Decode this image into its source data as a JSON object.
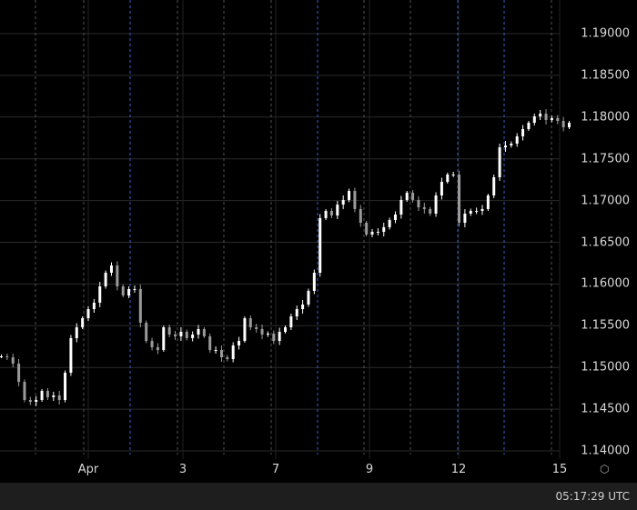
{
  "chart_data": {
    "type": "candlestick",
    "title": "",
    "ylim": [
      1.14,
      1.19
    ],
    "y_ticks": [
      "1.19000",
      "1.18500",
      "1.18000",
      "1.17500",
      "1.17000",
      "1.16500",
      "1.16000",
      "1.15500",
      "1.15000",
      "1.14500",
      "1.14000"
    ],
    "x_ticks": [
      "Apr",
      "3",
      "7",
      "9",
      "12",
      "15"
    ],
    "grid": true,
    "up_color": "#ffffff",
    "down_color": "#9a9a9a",
    "session_line_color": "#3a5fcf",
    "closes": [
      1.15133,
      1.15122,
      1.15046,
      1.14828,
      1.1461,
      1.14588,
      1.1461,
      1.14719,
      1.14643,
      1.14665,
      1.1461,
      1.14937,
      1.15351,
      1.15481,
      1.1559,
      1.15699,
      1.15776,
      1.15972,
      1.16135,
      1.16222,
      1.15972,
      1.15863,
      1.15939,
      1.15939,
      1.15536,
      1.15318,
      1.15242,
      1.15209,
      1.15481,
      1.15394,
      1.15373,
      1.15427,
      1.15351,
      1.15394,
      1.1546,
      1.15373,
      1.15209,
      1.15209,
      1.15122,
      1.151,
      1.15264,
      1.15318,
      1.1559,
      1.15481,
      1.1546,
      1.15394,
      1.15405,
      1.15318,
      1.15427,
      1.15481,
      1.15612,
      1.15699,
      1.15754,
      1.15917,
      1.16135,
      1.16789,
      1.16876,
      1.16821,
      1.16952,
      1.17007,
      1.17115,
      1.16898,
      1.16734,
      1.16593,
      1.16625,
      1.16625,
      1.1668,
      1.16767,
      1.16832,
      1.17007,
      1.17094,
      1.17007,
      1.16919,
      1.16898,
      1.16843,
      1.17061,
      1.17224,
      1.17312,
      1.17312,
      1.16734,
      1.16843,
      1.16876,
      1.16876,
      1.16898,
      1.17061,
      1.17279,
      1.17638,
      1.1766,
      1.17682,
      1.17769,
      1.17856,
      1.17932,
      1.18009,
      1.18041,
      1.17965,
      1.17987,
      1.17954,
      1.17878,
      1.17932
    ]
  },
  "status_bar": {
    "clock": "05:17:29 UTC"
  },
  "icons": {
    "settings": "settings-hexagon-icon"
  }
}
